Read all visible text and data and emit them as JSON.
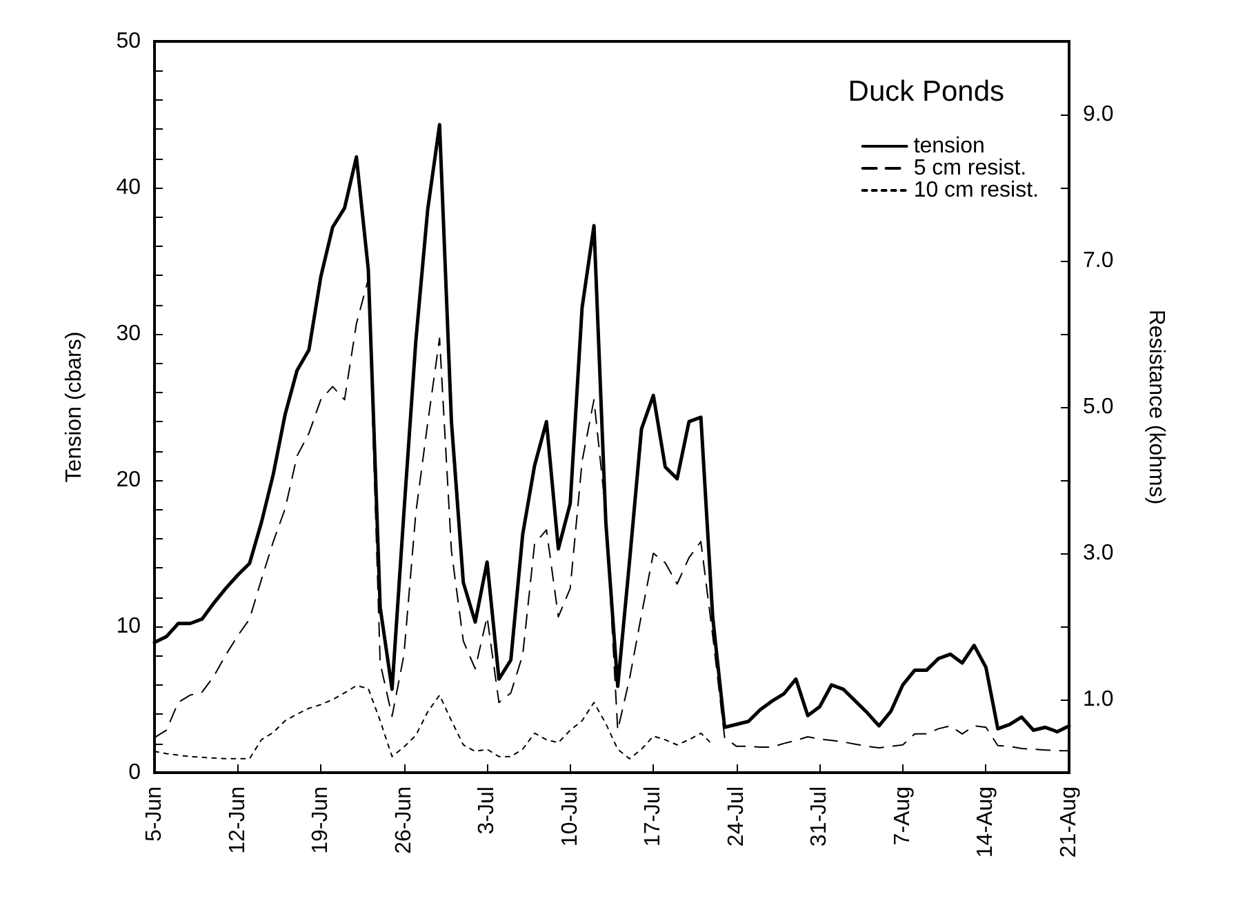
{
  "chart_data": {
    "type": "line",
    "ylabel": "Tension (cbars)",
    "y2label": "Resistance (kohms)",
    "legend_title": "Duck Ponds",
    "legend": "top right",
    "grid": false,
    "marker": "none",
    "x": [
      "--06-05",
      "--06-06",
      "--06-07",
      "--06-08",
      "--06-09",
      "--06-10",
      "--06-11",
      "--06-12",
      "--06-13",
      "--06-14",
      "--06-15",
      "--06-16",
      "--06-17",
      "--06-18",
      "--06-19",
      "--06-20",
      "--06-21",
      "--06-22",
      "--06-23",
      "--06-24",
      "--06-25",
      "--06-26",
      "--06-27",
      "--06-28",
      "--06-29",
      "--06-30",
      "--07-01",
      "--07-02",
      "--07-03",
      "--07-04",
      "--07-05",
      "--07-06",
      "--07-07",
      "--07-08",
      "--07-09",
      "--07-10",
      "--07-11",
      "--07-12",
      "--07-13",
      "--07-14",
      "--07-15",
      "--07-16",
      "--07-17",
      "--07-18",
      "--07-19",
      "--07-20",
      "--07-21",
      "--07-22",
      "--07-23",
      "--07-24",
      "--07-25",
      "--07-26",
      "--07-27",
      "--07-28",
      "--07-29",
      "--07-30",
      "--07-31",
      "--08-01",
      "--08-02",
      "--08-03",
      "--08-04",
      "--08-05",
      "--08-06",
      "--08-07",
      "--08-08",
      "--08-09",
      "--08-10",
      "--08-11",
      "--08-12",
      "--08-13",
      "--08-14",
      "--08-15",
      "--08-16",
      "--08-17",
      "--08-18",
      "--08-19",
      "--08-20",
      "--08-21"
    ],
    "xlim": [
      "--06-05",
      "--08-21"
    ],
    "xticks": [
      {
        "value": "--06-05",
        "label": "5-Jun"
      },
      {
        "value": "--06-12",
        "label": "12-Jun"
      },
      {
        "value": "--06-19",
        "label": "19-Jun"
      },
      {
        "value": "--06-26",
        "label": "26-Jun"
      },
      {
        "value": "--07-03",
        "label": "3-Jul"
      },
      {
        "value": "--07-10",
        "label": "10-Jul"
      },
      {
        "value": "--07-17",
        "label": "17-Jul"
      },
      {
        "value": "--07-24",
        "label": "24-Jul"
      },
      {
        "value": "--07-31",
        "label": "31-Jul"
      },
      {
        "value": "--08-07",
        "label": "7-Aug"
      },
      {
        "value": "--08-14",
        "label": "14-Aug"
      },
      {
        "value": "--08-21",
        "label": "21-Aug"
      }
    ],
    "ylim": [
      0,
      50
    ],
    "yticks": [
      0,
      {
        "value": 2,
        "label": null
      },
      {
        "value": 4,
        "label": null
      },
      {
        "value": 6,
        "label": null
      },
      {
        "value": 8,
        "label": null
      },
      10,
      {
        "value": 12,
        "label": null
      },
      {
        "value": 14,
        "label": null
      },
      {
        "value": 16,
        "label": null
      },
      {
        "value": 18,
        "label": null
      },
      20,
      {
        "value": 22,
        "label": null
      },
      {
        "value": 24,
        "label": null
      },
      {
        "value": 26,
        "label": null
      },
      {
        "value": 28,
        "label": null
      },
      30,
      {
        "value": 32,
        "label": null
      },
      {
        "value": 34,
        "label": null
      },
      {
        "value": 36,
        "label": null
      },
      {
        "value": 38,
        "label": null
      },
      40,
      {
        "value": 42,
        "label": null
      },
      {
        "value": 44,
        "label": null
      },
      {
        "value": 46,
        "label": null
      },
      {
        "value": 48,
        "label": null
      },
      50
    ],
    "y2lim": [
      0,
      10
    ],
    "y2ticks": [
      {
        "value": 1,
        "label": "1.0"
      },
      {
        "value": 2,
        "label": null
      },
      {
        "value": 3,
        "label": "3.0"
      },
      {
        "value": 4,
        "label": null
      },
      {
        "value": 5,
        "label": "5.0"
      },
      {
        "value": 6,
        "label": null
      },
      {
        "value": 7,
        "label": "7.0"
      },
      {
        "value": 8,
        "label": null
      },
      {
        "value": 9,
        "label": "9.0"
      }
    ],
    "series": [
      {
        "name": "tension",
        "color": "#000000",
        "line_style": "solid",
        "values": [
          8.9,
          9.3,
          10.2,
          10.2,
          10.5,
          11.6,
          12.6,
          13.5,
          14.3,
          17.1,
          20.4,
          24.5,
          27.5,
          28.9,
          33.9,
          37.3,
          38.6,
          42.1,
          34.4,
          11.3,
          5.7,
          17.8,
          29.5,
          38.5,
          44.3,
          24.0,
          13.0,
          10.3,
          14.4,
          6.4,
          7.7,
          16.3,
          21.0,
          24.0,
          15.3,
          18.4,
          31.8,
          37.4,
          17.1,
          5.9,
          14.5,
          23.5,
          25.8,
          20.9,
          20.1,
          24.0,
          24.3,
          10.6,
          3.1,
          3.3,
          3.5,
          4.3,
          4.9,
          5.4,
          6.4,
          3.9,
          4.5,
          6.0,
          5.7,
          4.9,
          4.1,
          3.2,
          4.2,
          6.0,
          7.0,
          7.0,
          7.8,
          8.1,
          7.5,
          8.7,
          7.2,
          3.0,
          3.3,
          3.8,
          2.9,
          3.1,
          2.8,
          3.2
        ]
      },
      {
        "name": "5 cm resist.",
        "color": "#000000",
        "line_style": "dashed",
        "axis": "y2",
        "values": [
          0.48,
          0.58,
          0.96,
          1.06,
          1.1,
          1.32,
          1.61,
          1.87,
          2.1,
          2.64,
          3.16,
          3.61,
          4.33,
          4.64,
          5.1,
          5.28,
          5.1,
          6.14,
          6.75,
          1.5,
          0.77,
          1.61,
          3.55,
          4.78,
          5.94,
          3.03,
          1.8,
          1.42,
          2.13,
          0.96,
          1.09,
          1.61,
          3.13,
          3.32,
          2.13,
          2.52,
          4.26,
          5.1,
          3.55,
          0.58,
          1.29,
          2.16,
          3.0,
          2.87,
          2.58,
          2.94,
          3.16,
          1.87,
          0.48,
          0.36,
          0.36,
          0.35,
          0.35,
          0.4,
          0.44,
          0.49,
          0.46,
          0.44,
          0.42,
          0.39,
          0.36,
          0.34,
          0.36,
          0.38,
          0.53,
          0.53,
          0.6,
          0.64,
          0.53,
          0.64,
          0.62,
          0.37,
          0.36,
          0.33,
          0.32,
          0.31,
          0.3,
          0.3
        ]
      },
      {
        "name": "10 cm resist.",
        "color": "#000000",
        "line_style": "dotted",
        "axis": "y2",
        "values": [
          0.29,
          0.26,
          0.24,
          0.22,
          0.21,
          0.2,
          0.19,
          0.19,
          0.19,
          0.45,
          0.55,
          0.71,
          0.8,
          0.88,
          0.93,
          1.0,
          1.09,
          1.19,
          1.15,
          0.71,
          0.22,
          0.35,
          0.51,
          0.83,
          1.06,
          0.71,
          0.38,
          0.29,
          0.32,
          0.22,
          0.22,
          0.32,
          0.54,
          0.45,
          0.41,
          0.58,
          0.71,
          0.96,
          0.67,
          0.32,
          0.19,
          0.32,
          0.5,
          0.45,
          0.38,
          0.45,
          0.54,
          0.38,
          null,
          null,
          null,
          null,
          null,
          null,
          null,
          null,
          null,
          null,
          null,
          null,
          null,
          null,
          null,
          null,
          null,
          null,
          null,
          null,
          null,
          null,
          null,
          null,
          null,
          null,
          null,
          null,
          null,
          null
        ]
      }
    ]
  }
}
